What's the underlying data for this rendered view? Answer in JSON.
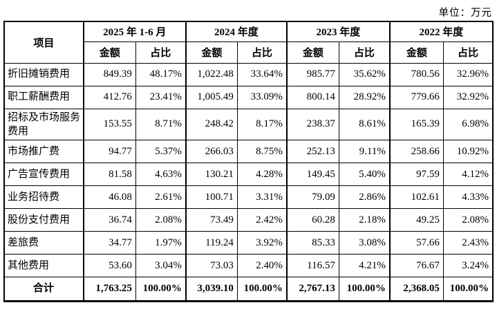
{
  "unit_label": "单位：万元",
  "table": {
    "item_header": "项目",
    "col_groups": [
      {
        "label": "2025 年 1-6 月",
        "sub_labels": [
          "金额",
          "占比"
        ]
      },
      {
        "label": "2024 年度",
        "sub_labels": [
          "金额",
          "占比"
        ]
      },
      {
        "label": "2023 年度",
        "sub_labels": [
          "金额",
          "占比"
        ]
      },
      {
        "label": "2022 年度",
        "sub_labels": [
          "金额",
          "占比"
        ]
      }
    ],
    "rows": [
      {
        "item": "折旧摊销费用",
        "values": [
          "849.39",
          "48.17%",
          "1,022.48",
          "33.64%",
          "985.77",
          "35.62%",
          "780.56",
          "32.96%"
        ]
      },
      {
        "item": "职工薪酬费用",
        "values": [
          "412.76",
          "23.41%",
          "1,005.49",
          "33.09%",
          "800.14",
          "28.92%",
          "779.66",
          "32.92%"
        ]
      },
      {
        "item": "招标及市场服务费用",
        "values": [
          "153.55",
          "8.71%",
          "248.42",
          "8.17%",
          "238.37",
          "8.61%",
          "165.39",
          "6.98%"
        ]
      },
      {
        "item": "市场推广费",
        "values": [
          "94.77",
          "5.37%",
          "266.03",
          "8.75%",
          "252.13",
          "9.11%",
          "258.66",
          "10.92%"
        ]
      },
      {
        "item": "广告宣传费用",
        "values": [
          "81.58",
          "4.63%",
          "130.21",
          "4.28%",
          "149.45",
          "5.40%",
          "97.59",
          "4.12%"
        ]
      },
      {
        "item": "业务招待费",
        "values": [
          "46.08",
          "2.61%",
          "100.71",
          "3.31%",
          "79.09",
          "2.86%",
          "102.61",
          "4.33%"
        ]
      },
      {
        "item": "股份支付费用",
        "values": [
          "36.74",
          "2.08%",
          "73.49",
          "2.42%",
          "60.28",
          "2.18%",
          "49.25",
          "2.08%"
        ]
      },
      {
        "item": "差旅费",
        "values": [
          "34.77",
          "1.97%",
          "119.24",
          "3.92%",
          "85.33",
          "3.08%",
          "57.66",
          "2.43%"
        ]
      },
      {
        "item": "其他费用",
        "values": [
          "53.60",
          "3.04%",
          "73.03",
          "2.40%",
          "116.57",
          "4.21%",
          "76.67",
          "3.24%"
        ]
      }
    ],
    "total": {
      "item": "合计",
      "values": [
        "1,763.25",
        "100.00%",
        "3,039.10",
        "100.00%",
        "2,767.13",
        "100.00%",
        "2,368.05",
        "100.00%"
      ]
    }
  }
}
